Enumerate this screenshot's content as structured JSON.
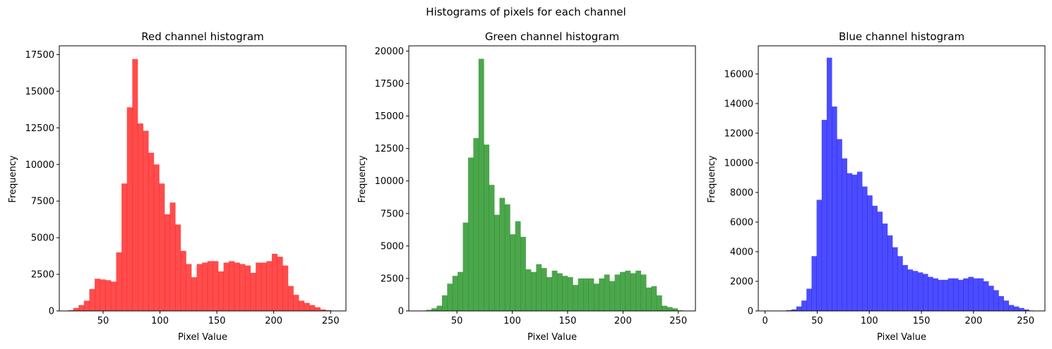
{
  "suptitle": "Histograms of pixels for each channel",
  "chart_data": [
    {
      "type": "bar",
      "title": "Red channel histogram",
      "xlabel": "Pixel Value",
      "ylabel": "Frequency",
      "color": "#ff0000",
      "alpha": 0.7,
      "xlim": [
        11.5,
        263.5
      ],
      "ylim": [
        0,
        18100
      ],
      "xticks": [
        50,
        100,
        150,
        200,
        250
      ],
      "yticks": [
        0,
        2500,
        5000,
        7500,
        10000,
        12500,
        15000,
        17500
      ],
      "bin_start": 19,
      "bin_width": 4.72,
      "values": [
        50,
        200,
        400,
        700,
        1500,
        2200,
        2150,
        2100,
        2000,
        4000,
        8700,
        13900,
        17200,
        12800,
        12300,
        10800,
        10000,
        8700,
        6600,
        7400,
        5900,
        4100,
        3200,
        2300,
        3200,
        3300,
        3400,
        3400,
        2700,
        3300,
        3400,
        3300,
        3200,
        3100,
        2600,
        3300,
        3300,
        3400,
        3900,
        3700,
        3100,
        1700,
        1100,
        700,
        550,
        400,
        250,
        100,
        50,
        20
      ]
    },
    {
      "type": "bar",
      "title": "Green channel histogram",
      "xlabel": "Pixel Value",
      "ylabel": "Frequency",
      "color": "#008000",
      "alpha": 0.7,
      "xlim": [
        6.5,
        265.5
      ],
      "ylim": [
        0,
        20400
      ],
      "xticks": [
        50,
        100,
        150,
        200,
        250
      ],
      "yticks": [
        0,
        2500,
        5000,
        7500,
        10000,
        12500,
        15000,
        17500,
        20000
      ],
      "bin_start": 17.5,
      "bin_width": 4.73,
      "values": [
        30,
        80,
        200,
        400,
        1200,
        2100,
        2700,
        3000,
        6800,
        11800,
        13300,
        19400,
        12800,
        9700,
        7400,
        8700,
        8200,
        5900,
        6900,
        5700,
        3200,
        3000,
        3600,
        3300,
        2600,
        3100,
        2900,
        2700,
        2600,
        2000,
        2500,
        2500,
        2500,
        2100,
        2500,
        2800,
        2300,
        2800,
        3000,
        3100,
        2900,
        3100,
        2800,
        1800,
        1900,
        1200,
        400,
        300,
        200,
        50
      ]
    },
    {
      "type": "bar",
      "title": "Blue channel histogram",
      "xlabel": "Pixel Value",
      "ylabel": "Frequency",
      "color": "#0000ff",
      "alpha": 0.7,
      "xlim": [
        -6.5,
        268.5
      ],
      "ylim": [
        0,
        17900
      ],
      "xticks": [
        0,
        50,
        100,
        150,
        200,
        250
      ],
      "yticks": [
        0,
        2000,
        4000,
        6000,
        8000,
        10000,
        12000,
        14000,
        16000
      ],
      "bin_start": 15.5,
      "bin_width": 4.85,
      "values": [
        20,
        50,
        100,
        300,
        700,
        1500,
        3700,
        7500,
        12900,
        17100,
        13800,
        11600,
        10300,
        9300,
        9200,
        9400,
        8400,
        7800,
        7100,
        6700,
        5900,
        5100,
        4300,
        3700,
        3100,
        2800,
        2700,
        2600,
        2500,
        2300,
        2200,
        2100,
        2100,
        2200,
        2200,
        2100,
        2200,
        2300,
        2200,
        2200,
        2000,
        1700,
        1400,
        1000,
        700,
        400,
        300,
        200,
        100,
        30
      ]
    }
  ]
}
